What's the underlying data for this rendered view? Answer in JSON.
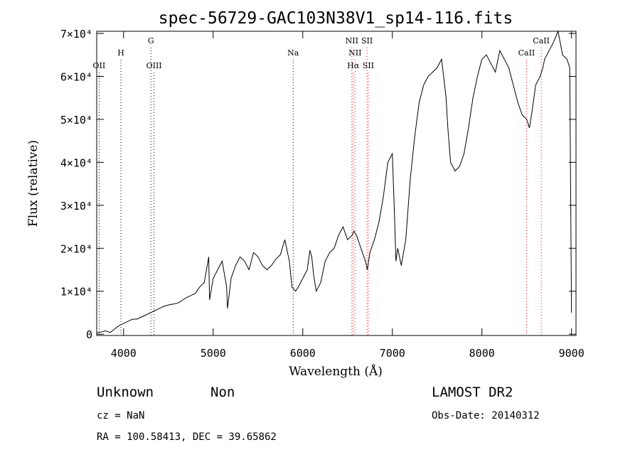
{
  "chart_data": {
    "type": "line",
    "title": "spec-56729-GAC103N38V1_sp14-116.fits",
    "xlabel": "Wavelength (Å)",
    "ylabel": "Flux (relative)",
    "xlim": [
      3700,
      9050
    ],
    "ylim": [
      -300,
      70500
    ],
    "xticks": [
      {
        "value": 4000,
        "label": "4000"
      },
      {
        "value": 5000,
        "label": "5000"
      },
      {
        "value": 6000,
        "label": "6000"
      },
      {
        "value": 7000,
        "label": "7000"
      },
      {
        "value": 8000,
        "label": "8000"
      },
      {
        "value": 9000,
        "label": "9000"
      }
    ],
    "yticks": [
      {
        "value": 0,
        "label": "0"
      },
      {
        "value": 10000,
        "label": "1×10⁴"
      },
      {
        "value": 20000,
        "label": "2×10⁴"
      },
      {
        "value": 30000,
        "label": "3×10⁴"
      },
      {
        "value": 40000,
        "label": "4×10⁴"
      },
      {
        "value": 50000,
        "label": "5×10⁴"
      },
      {
        "value": 60000,
        "label": "6×10⁴"
      },
      {
        "value": 70000,
        "label": "7×10⁴"
      }
    ],
    "spectral_lines": [
      {
        "label": "OII",
        "wavelength": 3727,
        "color": "#000000",
        "row": 3
      },
      {
        "label": "H",
        "wavelength": 3970,
        "color": "#000000",
        "row": 2
      },
      {
        "label": "G",
        "wavelength": 4305,
        "color": "#000000",
        "row": 1
      },
      {
        "label": "OIII",
        "wavelength": 4340,
        "color": "#000000",
        "row": 3
      },
      {
        "label": "Na",
        "wavelength": 5893,
        "color": "#000000",
        "row": 2
      },
      {
        "label": "NII",
        "wavelength": 6548,
        "color": "#ff0000",
        "row": 1
      },
      {
        "label": "NII",
        "wavelength": 6584,
        "color": "#ff0000",
        "row": 2
      },
      {
        "label": "Hα",
        "wavelength": 6563,
        "color": "#ff0000",
        "row": 3
      },
      {
        "label": "SII",
        "wavelength": 6717,
        "color": "#ff0000",
        "row": 1
      },
      {
        "label": "SII",
        "wavelength": 6731,
        "color": "#ff0000",
        "row": 3
      },
      {
        "label": "CaII",
        "wavelength": 8498,
        "color": "#ff0000",
        "row": 2
      },
      {
        "label": "CaII",
        "wavelength": 8662,
        "color": "#ff0000",
        "row": 1
      }
    ],
    "series": [
      {
        "x": [
          3700,
          3750,
          3800,
          3850,
          3900,
          3950,
          4000,
          4050,
          4100,
          4150,
          4200,
          4250,
          4300,
          4350,
          4400,
          4450,
          4500,
          4550,
          4600,
          4650,
          4700,
          4750,
          4800,
          4850,
          4900,
          4950,
          4960,
          5000,
          5050,
          5100,
          5150,
          5160,
          5200,
          5250,
          5300,
          5350,
          5400,
          5450,
          5500,
          5550,
          5600,
          5650,
          5700,
          5750,
          5800,
          5850,
          5880,
          5920,
          5950,
          6000,
          6050,
          6080,
          6100,
          6120,
          6150,
          6200,
          6250,
          6300,
          6350,
          6400,
          6450,
          6500,
          6550,
          6570,
          6600,
          6650,
          6700,
          6720,
          6750,
          6800,
          6850,
          6900,
          6950,
          7000,
          7020,
          7040,
          7060,
          7080,
          7100,
          7150,
          7200,
          7250,
          7300,
          7350,
          7400,
          7450,
          7500,
          7550,
          7600,
          7620,
          7650,
          7700,
          7750,
          7800,
          7850,
          7900,
          7950,
          8000,
          8050,
          8100,
          8150,
          8200,
          8250,
          8300,
          8350,
          8400,
          8450,
          8500,
          8530,
          8560,
          8600,
          8650,
          8680,
          8700,
          8750,
          8800,
          8850,
          8900,
          8950,
          8980,
          9000
        ],
        "y": [
          300,
          500,
          800,
          400,
          1200,
          2000,
          2500,
          3000,
          3500,
          3500,
          4000,
          4500,
          5000,
          5500,
          6000,
          6500,
          6800,
          7000,
          7200,
          7800,
          8500,
          9000,
          9500,
          11000,
          12000,
          18000,
          8000,
          13000,
          15000,
          17000,
          11000,
          6000,
          13000,
          16000,
          18000,
          17000,
          15000,
          19000,
          18000,
          16000,
          15000,
          16000,
          17500,
          18500,
          22000,
          17000,
          11000,
          10000,
          11000,
          13000,
          15000,
          19500,
          18000,
          14000,
          10000,
          12000,
          17000,
          19000,
          20000,
          23000,
          25000,
          22000,
          23000,
          24000,
          23000,
          20000,
          17000,
          15000,
          19000,
          22000,
          26000,
          32000,
          40000,
          42000,
          30000,
          17000,
          20000,
          18000,
          16000,
          22000,
          36000,
          46000,
          54000,
          58000,
          60000,
          61000,
          62000,
          64000,
          55000,
          48000,
          40000,
          38000,
          39000,
          42000,
          48000,
          55000,
          60000,
          64000,
          65000,
          63000,
          61000,
          66000,
          64000,
          62000,
          58000,
          54000,
          51000,
          50000,
          48000,
          52000,
          58000,
          60000,
          62000,
          64000,
          66000,
          68000,
          72000,
          65000,
          64000,
          62000,
          5000
        ]
      }
    ]
  },
  "footer": {
    "left_line1a": "Unknown",
    "left_line1b": "Non",
    "left_line2": "cz = NaN",
    "left_line3": "RA = 100.58413, DEC =  39.65862",
    "right_line1": "LAMOST DR2",
    "right_line2": "Obs-Date: 20140312"
  }
}
